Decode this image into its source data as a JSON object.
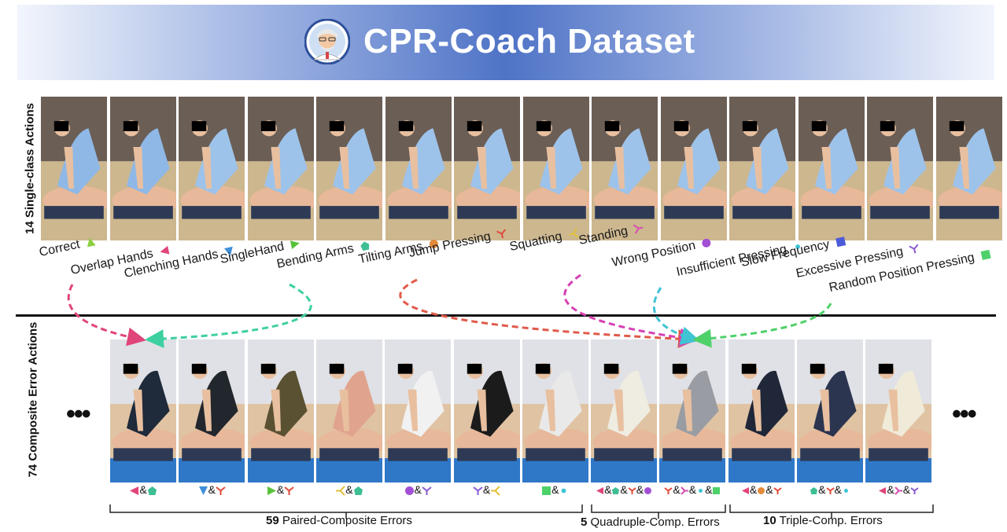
{
  "title": "CPR-Coach Dataset",
  "row_labels": {
    "single": "14 Single-class Actions",
    "composite": "74 Composite Error Actions"
  },
  "single_actions": [
    {
      "label": "Correct",
      "symbol": "triangle-up",
      "color": "#8ccf3f"
    },
    {
      "label": "Overlap Hands",
      "symbol": "triangle-left",
      "color": "#e0457a"
    },
    {
      "label": "Clenching Hands",
      "symbol": "triangle-down",
      "color": "#3f8fd9"
    },
    {
      "label": "SingleHand",
      "symbol": "triangle-right",
      "color": "#58c23a"
    },
    {
      "label": "Bending Arms",
      "symbol": "pentagon",
      "color": "#3dbf93"
    },
    {
      "label": "Tilting Arms",
      "symbol": "circle",
      "color": "#e38a3a"
    },
    {
      "label": "Jump Pressing",
      "symbol": "tri-down",
      "color": "#e04a3a"
    },
    {
      "label": "Squatting",
      "symbol": "tri-left",
      "color": "#e2c23a"
    },
    {
      "label": "Standing",
      "symbol": "tri-right",
      "color": "#d64fb0"
    },
    {
      "label": "Wrong Position",
      "symbol": "circle",
      "color": "#a24fd4"
    },
    {
      "label": "Insufficient Pressing",
      "symbol": "small-circle",
      "color": "#3fc4d4"
    },
    {
      "label": "Slow Frequency",
      "symbol": "square",
      "color": "#4b5bd8"
    },
    {
      "label": "Excessive Pressing",
      "symbol": "tri-down",
      "color": "#8a5ad4"
    },
    {
      "label": "Random Position Pressing",
      "symbol": "square",
      "color": "#4fd16a"
    }
  ],
  "composite_combos": [
    {
      "symbols": [
        1,
        4
      ]
    },
    {
      "symbols": [
        2,
        6
      ]
    },
    {
      "symbols": [
        3,
        6
      ]
    },
    {
      "symbols": [
        7,
        4
      ]
    },
    {
      "symbols": [
        9,
        12
      ]
    },
    {
      "symbols": [
        12,
        7
      ]
    },
    {
      "symbols": [
        13,
        10
      ]
    },
    {
      "symbols": [
        1,
        4,
        6,
        9
      ]
    },
    {
      "symbols": [
        6,
        8,
        10,
        13
      ]
    },
    {
      "symbols": [
        1,
        5,
        6
      ]
    },
    {
      "symbols": [
        4,
        6,
        10
      ]
    },
    {
      "symbols": [
        1,
        8,
        12
      ]
    }
  ],
  "groups": [
    {
      "count": "59",
      "label": " Paired-Composite Errors"
    },
    {
      "count": "5",
      "label": " Quadruple-Comp. Errors"
    },
    {
      "count": "10",
      "label": " Triple-Comp. Errors"
    }
  ],
  "ellipsis": "•••",
  "amp": "&",
  "shirt_colors_top": [
    "#8fb8e6",
    "#8fb8e6",
    "#9ec3ea",
    "#9ec3ea",
    "#9ec3ea",
    "#9ec3ea",
    "#9ec3ea",
    "#9ec3ea",
    "#9ec3ea",
    "#9ec3ea",
    "#9ec3ea",
    "#9ec3ea",
    "#9ec3ea",
    "#9ec3ea"
  ],
  "shirt_colors_bottom": [
    "#1f2a3a",
    "#22262d",
    "#5a5132",
    "#e0a48e",
    "#f1f1f1",
    "#1b1b1b",
    "#e9e9e9",
    "#efece2",
    "#9a9ca3",
    "#1f2738",
    "#2b3550",
    "#f0ead8"
  ]
}
